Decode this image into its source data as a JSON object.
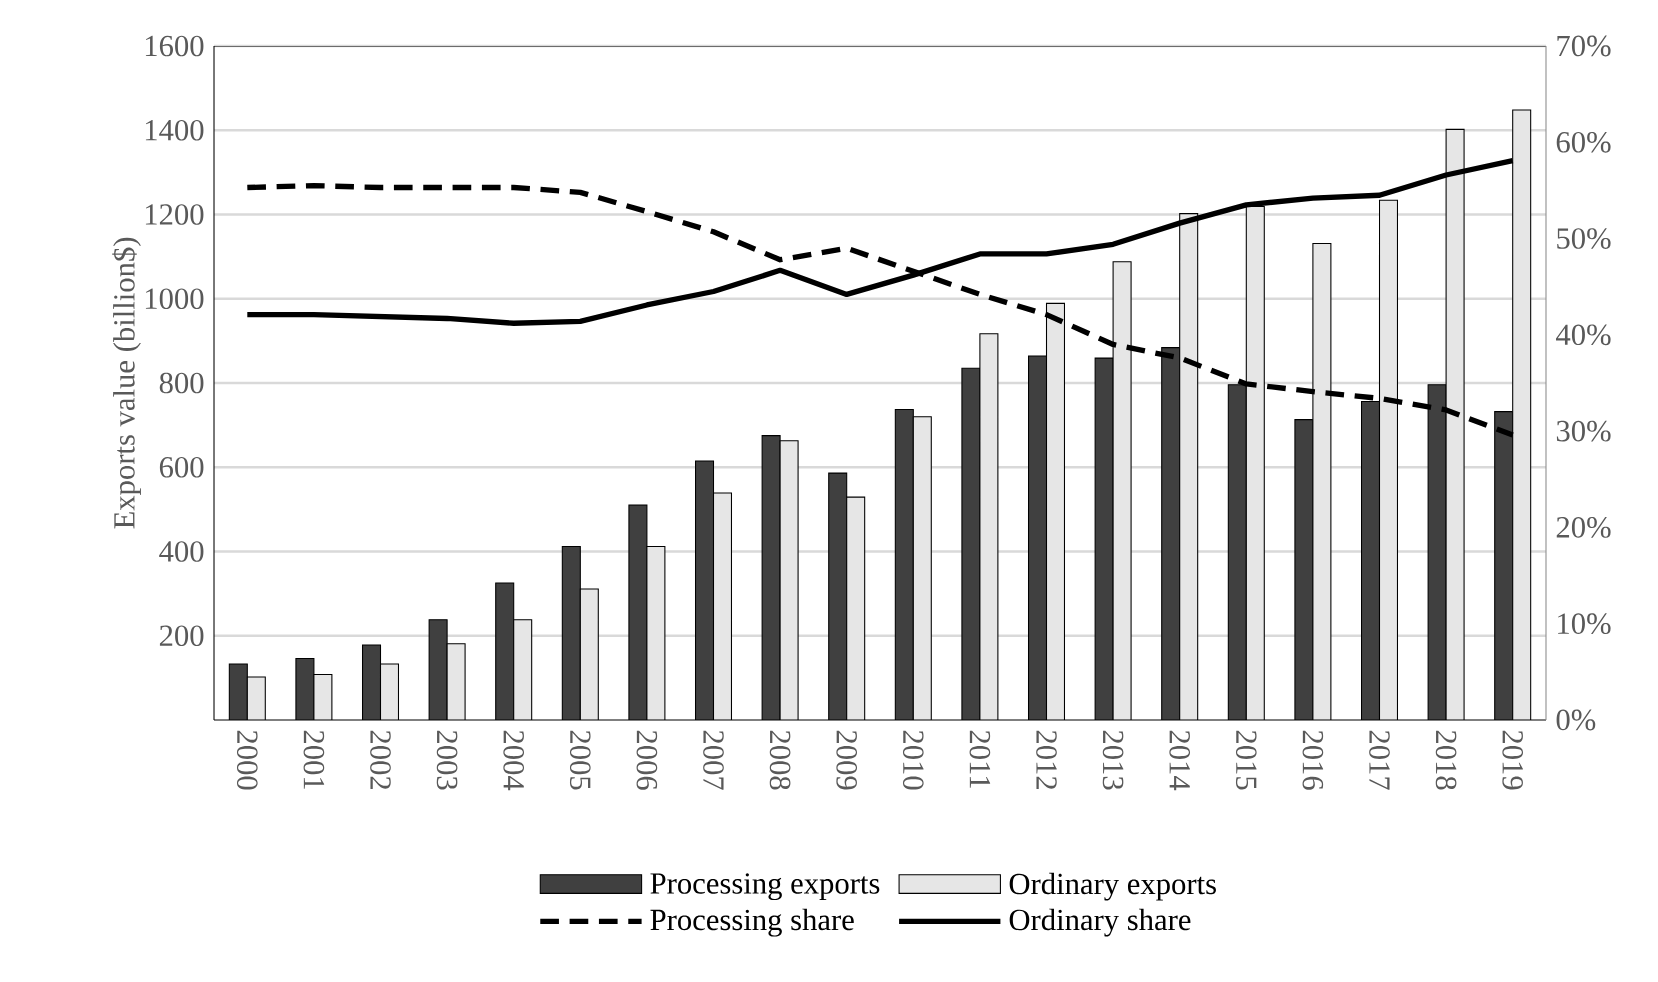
{
  "chart_data": {
    "type": "bar",
    "ylabel": "Exports value (billion$)",
    "categories": [
      "2000",
      "2001",
      "2002",
      "2003",
      "2004",
      "2005",
      "2006",
      "2007",
      "2008",
      "2009",
      "2010",
      "2011",
      "2012",
      "2013",
      "2014",
      "2015",
      "2016",
      "2017",
      "2018",
      "2019"
    ],
    "series": [
      {
        "name": "Processing exports",
        "color": "#404040",
        "values": [
          133,
          146,
          178,
          238,
          325,
          412,
          510,
          615,
          675,
          586,
          737,
          835,
          864,
          859,
          884,
          796,
          713,
          756,
          796,
          732
        ]
      },
      {
        "name": "Ordinary exports",
        "color": "#e6e6e6",
        "values": [
          102,
          108,
          133,
          181,
          238,
          311,
          412,
          539,
          663,
          529,
          720,
          917,
          989,
          1088,
          1202,
          1219,
          1131,
          1234,
          1402,
          1448
        ]
      },
      {
        "name": "Processing share",
        "type": "line",
        "axis": "y2",
        "line_style": "dashed",
        "color": "#000000",
        "values": [
          55.3,
          55.5,
          55.3,
          55.3,
          55.3,
          54.8,
          52.8,
          50.7,
          47.8,
          49.0,
          46.6,
          44.2,
          42.1,
          39.0,
          37.6,
          34.9,
          34.1,
          33.4,
          32.2,
          29.6
        ]
      },
      {
        "name": "Ordinary share",
        "type": "line",
        "axis": "y2",
        "line_style": "solid",
        "color": "#000000",
        "values": [
          42.1,
          42.1,
          41.9,
          41.7,
          41.2,
          41.4,
          43.1,
          44.5,
          46.7,
          44.2,
          46.2,
          48.4,
          48.4,
          49.4,
          51.6,
          53.5,
          54.2,
          54.5,
          56.6,
          58.1
        ]
      }
    ],
    "ylim": [
      0,
      1600
    ],
    "yticks": [
      200,
      400,
      600,
      800,
      1000,
      1200,
      1400,
      1600
    ],
    "y2lim": [
      0,
      70
    ],
    "y2ticks": [
      {
        "value": 0,
        "label": "0%"
      },
      {
        "value": 10,
        "label": "10%"
      },
      {
        "value": 20,
        "label": "20%"
      },
      {
        "value": 30,
        "label": "30%"
      },
      {
        "value": 40,
        "label": "40%"
      },
      {
        "value": 50,
        "label": "50%"
      },
      {
        "value": 60,
        "label": "60%"
      },
      {
        "value": 70,
        "label": "70%"
      }
    ],
    "grid": "y",
    "legend": "bottom"
  }
}
